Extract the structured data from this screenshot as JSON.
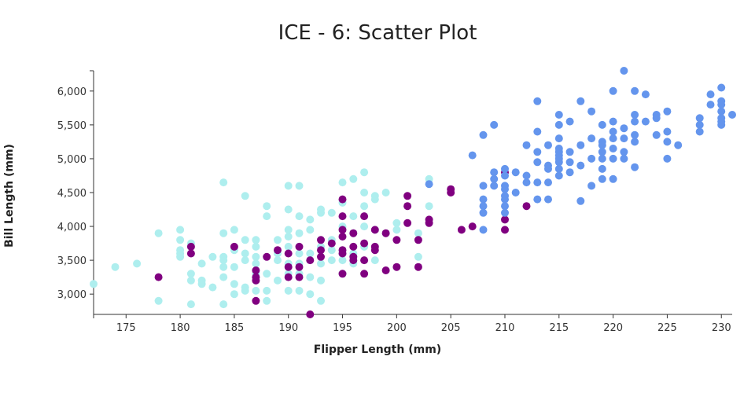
{
  "chart_data": {
    "type": "scatter",
    "title": "ICE - 6: Scatter Plot",
    "xlabel": "Flipper Length (mm)",
    "ylabel": "Bill Length (mm)",
    "xlim": [
      172,
      231
    ],
    "ylim": [
      2700,
      6300
    ],
    "xticks": [
      175,
      180,
      185,
      190,
      195,
      200,
      205,
      210,
      215,
      220,
      225,
      230
    ],
    "yticks": [
      3000,
      3500,
      4000,
      4500,
      5000,
      5500,
      6000
    ],
    "ytick_labels": [
      "3,000",
      "3,500",
      "4,000",
      "4,500",
      "5,000",
      "5,500",
      "6,000"
    ],
    "grid": false,
    "legend": "none",
    "colors": [
      "#aeeeee",
      "#800080",
      "#6495ed"
    ],
    "series": [
      {
        "color": "#aeeeee",
        "points": [
          [
            172,
            3150
          ],
          [
            174,
            3400
          ],
          [
            176,
            3450
          ],
          [
            178,
            3900
          ],
          [
            178,
            2900
          ],
          [
            180,
            3950
          ],
          [
            180,
            3800
          ],
          [
            180,
            3650
          ],
          [
            180,
            3600
          ],
          [
            180,
            3550
          ],
          [
            181,
            3750
          ],
          [
            181,
            3300
          ],
          [
            181,
            3200
          ],
          [
            181,
            2850
          ],
          [
            182,
            3450
          ],
          [
            182,
            3200
          ],
          [
            182,
            3150
          ],
          [
            183,
            3550
          ],
          [
            183,
            3100
          ],
          [
            184,
            4650
          ],
          [
            184,
            3900
          ],
          [
            184,
            3550
          ],
          [
            184,
            3500
          ],
          [
            184,
            3400
          ],
          [
            184,
            3250
          ],
          [
            184,
            2850
          ],
          [
            185,
            3950
          ],
          [
            185,
            3650
          ],
          [
            185,
            3400
          ],
          [
            185,
            3150
          ],
          [
            185,
            3000
          ],
          [
            186,
            4450
          ],
          [
            186,
            3800
          ],
          [
            186,
            3600
          ],
          [
            186,
            3500
          ],
          [
            186,
            3100
          ],
          [
            186,
            3050
          ],
          [
            187,
            3800
          ],
          [
            187,
            3700
          ],
          [
            187,
            3550
          ],
          [
            187,
            3450
          ],
          [
            187,
            3300
          ],
          [
            187,
            3050
          ],
          [
            188,
            4300
          ],
          [
            188,
            4150
          ],
          [
            188,
            3300
          ],
          [
            188,
            3050
          ],
          [
            188,
            2900
          ],
          [
            189,
            3800
          ],
          [
            189,
            3600
          ],
          [
            189,
            3500
          ],
          [
            189,
            3200
          ],
          [
            190,
            4600
          ],
          [
            190,
            4250
          ],
          [
            190,
            3950
          ],
          [
            190,
            3850
          ],
          [
            190,
            3700
          ],
          [
            190,
            3450
          ],
          [
            190,
            3300
          ],
          [
            190,
            3050
          ],
          [
            191,
            4600
          ],
          [
            191,
            4150
          ],
          [
            191,
            3900
          ],
          [
            191,
            3600
          ],
          [
            191,
            3450
          ],
          [
            191,
            3300
          ],
          [
            191,
            3050
          ],
          [
            192,
            4100
          ],
          [
            192,
            3950
          ],
          [
            192,
            3600
          ],
          [
            192,
            3250
          ],
          [
            192,
            3000
          ],
          [
            193,
            4250
          ],
          [
            193,
            4200
          ],
          [
            193,
            3700
          ],
          [
            193,
            3450
          ],
          [
            193,
            3200
          ],
          [
            193,
            2900
          ],
          [
            194,
            4200
          ],
          [
            194,
            3800
          ],
          [
            194,
            3650
          ],
          [
            194,
            3500
          ],
          [
            195,
            4650
          ],
          [
            195,
            4350
          ],
          [
            195,
            4000
          ],
          [
            195,
            3600
          ],
          [
            195,
            3500
          ],
          [
            195,
            3300
          ],
          [
            196,
            4700
          ],
          [
            196,
            4150
          ],
          [
            196,
            3900
          ],
          [
            196,
            3600
          ],
          [
            196,
            3450
          ],
          [
            197,
            4800
          ],
          [
            197,
            4500
          ],
          [
            197,
            4300
          ],
          [
            197,
            4000
          ],
          [
            197,
            3700
          ],
          [
            198,
            4450
          ],
          [
            198,
            4400
          ],
          [
            198,
            3950
          ],
          [
            198,
            3500
          ],
          [
            199,
            4500
          ],
          [
            199,
            3900
          ],
          [
            200,
            4050
          ],
          [
            200,
            3950
          ],
          [
            202,
            3900
          ],
          [
            202,
            3550
          ],
          [
            203,
            4700
          ],
          [
            203,
            4300
          ]
        ]
      },
      {
        "color": "#800080",
        "points": [
          [
            178,
            3250
          ],
          [
            181,
            3700
          ],
          [
            181,
            3600
          ],
          [
            185,
            3700
          ],
          [
            187,
            3350
          ],
          [
            187,
            3250
          ],
          [
            187,
            3200
          ],
          [
            187,
            2900
          ],
          [
            188,
            3550
          ],
          [
            189,
            3650
          ],
          [
            190,
            3600
          ],
          [
            190,
            3400
          ],
          [
            190,
            3250
          ],
          [
            191,
            3700
          ],
          [
            191,
            3400
          ],
          [
            191,
            3250
          ],
          [
            192,
            2700
          ],
          [
            192,
            3500
          ],
          [
            193,
            3800
          ],
          [
            193,
            3650
          ],
          [
            193,
            3550
          ],
          [
            194,
            3750
          ],
          [
            195,
            4400
          ],
          [
            195,
            4150
          ],
          [
            195,
            3950
          ],
          [
            195,
            3850
          ],
          [
            195,
            3650
          ],
          [
            195,
            3600
          ],
          [
            195,
            3300
          ],
          [
            196,
            3900
          ],
          [
            196,
            3700
          ],
          [
            196,
            3550
          ],
          [
            196,
            3500
          ],
          [
            197,
            4150
          ],
          [
            197,
            3750
          ],
          [
            197,
            3500
          ],
          [
            197,
            3300
          ],
          [
            198,
            3950
          ],
          [
            198,
            3700
          ],
          [
            198,
            3650
          ],
          [
            199,
            3900
          ],
          [
            199,
            3350
          ],
          [
            200,
            3800
          ],
          [
            200,
            3400
          ],
          [
            201,
            4450
          ],
          [
            201,
            4300
          ],
          [
            201,
            4050
          ],
          [
            202,
            3800
          ],
          [
            202,
            3400
          ],
          [
            203,
            4100
          ],
          [
            203,
            4050
          ],
          [
            205,
            4550
          ],
          [
            205,
            4500
          ],
          [
            206,
            3950
          ],
          [
            207,
            4000
          ],
          [
            210,
            4800
          ],
          [
            210,
            4100
          ],
          [
            210,
            3950
          ],
          [
            212,
            4300
          ]
        ]
      },
      {
        "color": "#6495ed",
        "points": [
          [
            203,
            4625
          ],
          [
            207,
            5050
          ],
          [
            208,
            5350
          ],
          [
            208,
            4600
          ],
          [
            208,
            4400
          ],
          [
            208,
            4300
          ],
          [
            208,
            4200
          ],
          [
            208,
            3950
          ],
          [
            209,
            5500
          ],
          [
            209,
            4800
          ],
          [
            209,
            4700
          ],
          [
            209,
            4600
          ],
          [
            210,
            4850
          ],
          [
            210,
            4750
          ],
          [
            210,
            4600
          ],
          [
            210,
            4550
          ],
          [
            210,
            4450
          ],
          [
            210,
            4400
          ],
          [
            210,
            4300
          ],
          [
            210,
            4200
          ],
          [
            211,
            4800
          ],
          [
            211,
            4500
          ],
          [
            212,
            5200
          ],
          [
            212,
            4750
          ],
          [
            212,
            4650
          ],
          [
            213,
            5850
          ],
          [
            213,
            5400
          ],
          [
            213,
            5100
          ],
          [
            213,
            4950
          ],
          [
            213,
            4650
          ],
          [
            213,
            4400
          ],
          [
            214,
            5200
          ],
          [
            214,
            4900
          ],
          [
            214,
            4850
          ],
          [
            214,
            4650
          ],
          [
            214,
            4400
          ],
          [
            215,
            5650
          ],
          [
            215,
            5500
          ],
          [
            215,
            5300
          ],
          [
            215,
            5150
          ],
          [
            215,
            5100
          ],
          [
            215,
            5050
          ],
          [
            215,
            5000
          ],
          [
            215,
            4950
          ],
          [
            215,
            4850
          ],
          [
            215,
            4750
          ],
          [
            216,
            5550
          ],
          [
            216,
            5100
          ],
          [
            216,
            4950
          ],
          [
            216,
            4800
          ],
          [
            217,
            5850
          ],
          [
            217,
            5200
          ],
          [
            217,
            4900
          ],
          [
            217,
            4375
          ],
          [
            218,
            5700
          ],
          [
            218,
            5300
          ],
          [
            218,
            5000
          ],
          [
            218,
            4600
          ],
          [
            219,
            5500
          ],
          [
            219,
            5250
          ],
          [
            219,
            5200
          ],
          [
            219,
            5100
          ],
          [
            219,
            5000
          ],
          [
            219,
            4850
          ],
          [
            219,
            4700
          ],
          [
            220,
            6000
          ],
          [
            220,
            5550
          ],
          [
            220,
            5400
          ],
          [
            220,
            5300
          ],
          [
            220,
            5150
          ],
          [
            220,
            5000
          ],
          [
            220,
            4700
          ],
          [
            221,
            6300
          ],
          [
            221,
            5450
          ],
          [
            221,
            5300
          ],
          [
            221,
            5100
          ],
          [
            221,
            5000
          ],
          [
            222,
            6000
          ],
          [
            222,
            5650
          ],
          [
            222,
            5550
          ],
          [
            222,
            5350
          ],
          [
            222,
            5250
          ],
          [
            222,
            4875
          ],
          [
            223,
            5950
          ],
          [
            223,
            5550
          ],
          [
            224,
            5650
          ],
          [
            224,
            5600
          ],
          [
            224,
            5350
          ],
          [
            225,
            5700
          ],
          [
            225,
            5400
          ],
          [
            225,
            5250
          ],
          [
            225,
            5000
          ],
          [
            226,
            5200
          ],
          [
            228,
            5600
          ],
          [
            228,
            5500
          ],
          [
            228,
            5400
          ],
          [
            229,
            5950
          ],
          [
            229,
            5800
          ],
          [
            230,
            6050
          ],
          [
            230,
            5850
          ],
          [
            230,
            5800
          ],
          [
            230,
            5700
          ],
          [
            230,
            5600
          ],
          [
            230,
            5550
          ],
          [
            230,
            5500
          ],
          [
            231,
            5650
          ]
        ]
      }
    ]
  }
}
